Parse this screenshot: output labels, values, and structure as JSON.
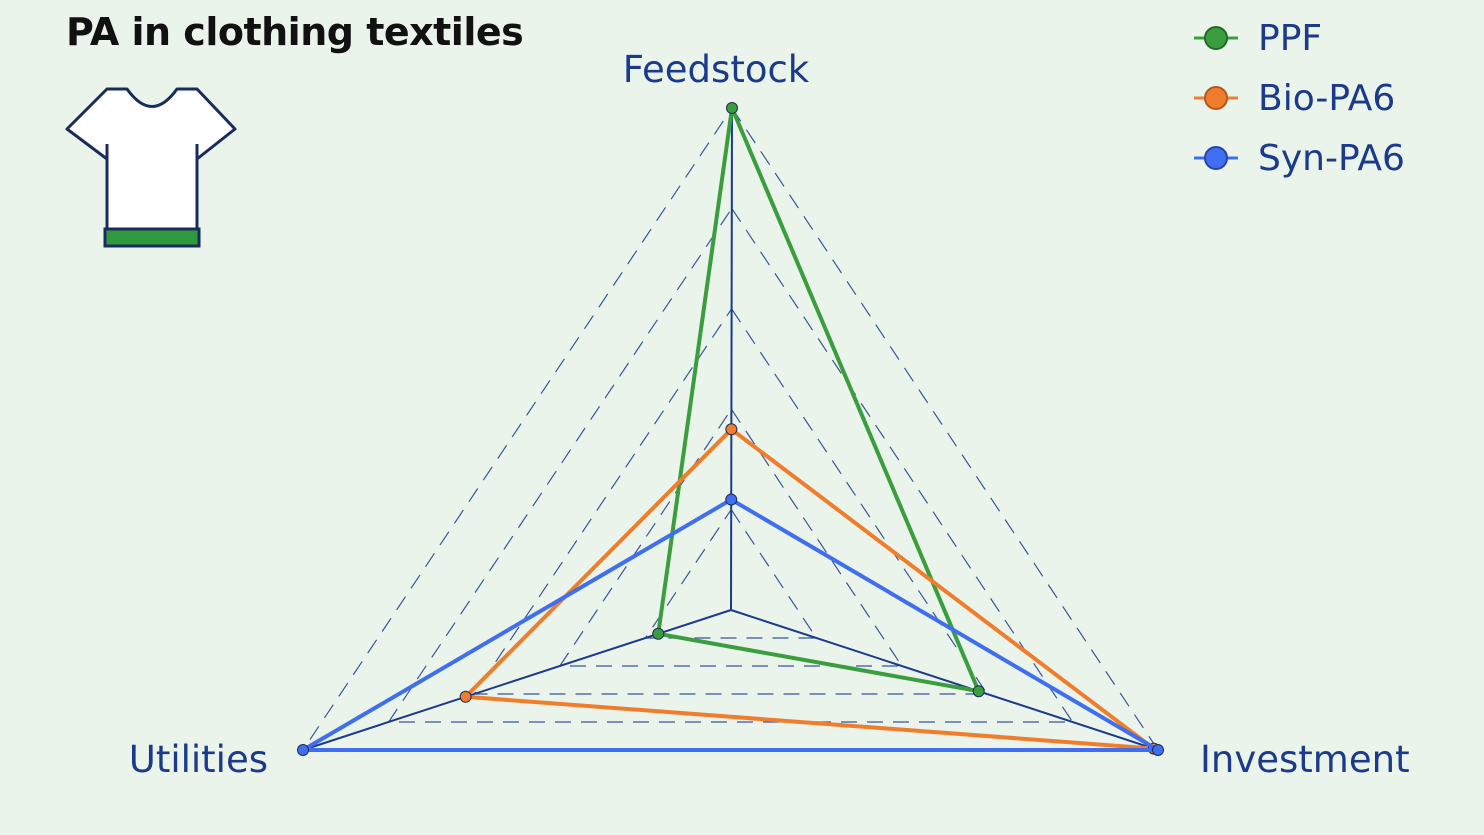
{
  "page": {
    "title": "PA in clothing textiles"
  },
  "icons": {
    "product_icon": "t-shirt-icon",
    "band_color": "#2e9a3c"
  },
  "colors": {
    "background": "#eaf4ea",
    "axis": "#1b3a8c",
    "grid": "#1b3a8c"
  },
  "chart_data": {
    "type": "radar",
    "title": "PA in clothing textiles",
    "axes": [
      "Feedstock",
      "Investment",
      "Utilities"
    ],
    "range": [
      0,
      1
    ],
    "grid_levels": [
      0.2,
      0.4,
      0.6,
      0.8,
      1.0
    ],
    "grid": true,
    "legend_position": "top-right",
    "series": [
      {
        "name": "PPF",
        "color": "#3a9e3f",
        "values": [
          1.0,
          0.58,
          0.17
        ]
      },
      {
        "name": "Bio-PA6",
        "color": "#f07d2b",
        "values": [
          0.36,
          0.99,
          0.62
        ]
      },
      {
        "name": "Syn-PA6",
        "color": "#3f6ff0",
        "values": [
          0.22,
          1.0,
          1.0
        ]
      }
    ]
  }
}
